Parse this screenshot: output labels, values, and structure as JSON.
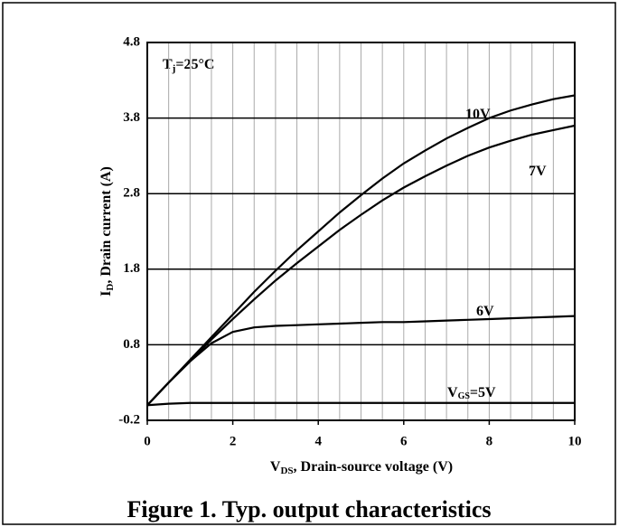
{
  "chart_data": {
    "type": "line",
    "title": "Figure 1. Typ. output characteristics",
    "annotation": {
      "main": "T",
      "sub": "j",
      "rest": "=25°C"
    },
    "x_label": {
      "main": "V",
      "sub": "DS",
      "rest": ", Drain-source voltage (V)"
    },
    "y_label": {
      "main": "I",
      "sub": "D",
      "rest": ", Drain current (A)"
    },
    "x": [
      0,
      0.5,
      1,
      1.5,
      2,
      2.5,
      3,
      3.5,
      4,
      4.5,
      5,
      5.5,
      6,
      6.5,
      7,
      7.5,
      8,
      8.5,
      9,
      9.5,
      10
    ],
    "series": [
      {
        "name": "10V",
        "color": "#000000",
        "values": [
          0,
          0.3,
          0.6,
          0.9,
          1.2,
          1.5,
          1.78,
          2.05,
          2.3,
          2.55,
          2.78,
          3.0,
          3.2,
          3.37,
          3.53,
          3.67,
          3.8,
          3.9,
          3.98,
          4.05,
          4.1
        ]
      },
      {
        "name": "7V",
        "color": "#000000",
        "values": [
          0,
          0.3,
          0.58,
          0.87,
          1.14,
          1.4,
          1.65,
          1.88,
          2.1,
          2.32,
          2.52,
          2.71,
          2.88,
          3.03,
          3.17,
          3.3,
          3.41,
          3.5,
          3.58,
          3.64,
          3.7
        ]
      },
      {
        "name": "6V",
        "color": "#000000",
        "values": [
          0,
          0.3,
          0.58,
          0.82,
          0.97,
          1.03,
          1.05,
          1.06,
          1.07,
          1.08,
          1.09,
          1.1,
          1.1,
          1.11,
          1.12,
          1.13,
          1.14,
          1.15,
          1.16,
          1.17,
          1.18
        ]
      },
      {
        "name": "V",
        "name_sub": "GS",
        "name_suffix": "=5V",
        "color": "#000000",
        "values": [
          0,
          0.02,
          0.03,
          0.03,
          0.03,
          0.03,
          0.03,
          0.03,
          0.03,
          0.03,
          0.03,
          0.03,
          0.03,
          0.03,
          0.03,
          0.03,
          0.03,
          0.03,
          0.03,
          0.03,
          0.03
        ]
      }
    ],
    "xlim": [
      0,
      10
    ],
    "ylim": [
      -0.2,
      4.8
    ],
    "xticks": [
      0,
      2,
      4,
      6,
      8,
      10
    ],
    "yticks": [
      -0.2,
      0.8,
      1.8,
      2.8,
      3.8,
      4.8
    ],
    "xgrid": [
      0.5,
      1,
      1.5,
      2,
      2.5,
      3,
      3.5,
      4,
      4.5,
      5,
      5.5,
      6,
      6.5,
      7,
      7.5,
      8,
      8.5,
      9,
      9.5
    ],
    "grid": true
  }
}
